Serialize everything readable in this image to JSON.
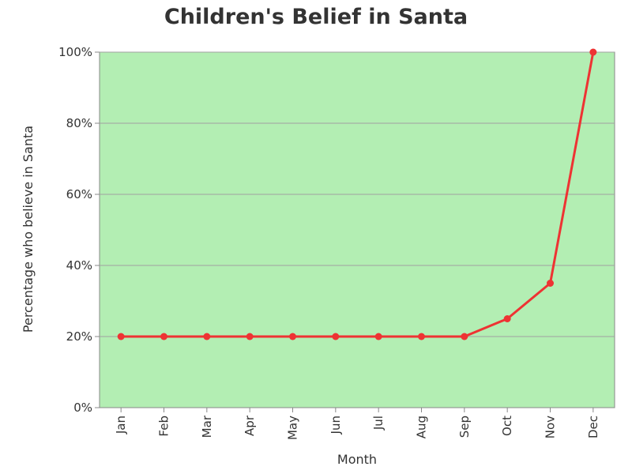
{
  "chart_data": {
    "type": "line",
    "title": "Children's Belief in Santa",
    "xlabel": "Month",
    "ylabel": "Percentage who believe in Santa",
    "categories": [
      "Jan",
      "Feb",
      "Mar",
      "Apr",
      "May",
      "Jun",
      "Jul",
      "Aug",
      "Sep",
      "Oct",
      "Nov",
      "Dec"
    ],
    "series": [
      {
        "values": [
          20,
          20,
          20,
          20,
          20,
          20,
          20,
          20,
          20,
          25,
          35,
          100
        ]
      }
    ],
    "ylim": [
      0,
      100
    ],
    "yticks": [
      0,
      20,
      40,
      60,
      80,
      100
    ],
    "ytick_labels": [
      "0%",
      "20%",
      "40%",
      "60%",
      "80%",
      "100%"
    ],
    "grid": true,
    "colors": {
      "plot_background": "#b3eeb3",
      "line": "#ee3333",
      "marker": "#ee3333",
      "grid": "#a0a0a0",
      "axis": "#888888"
    }
  }
}
